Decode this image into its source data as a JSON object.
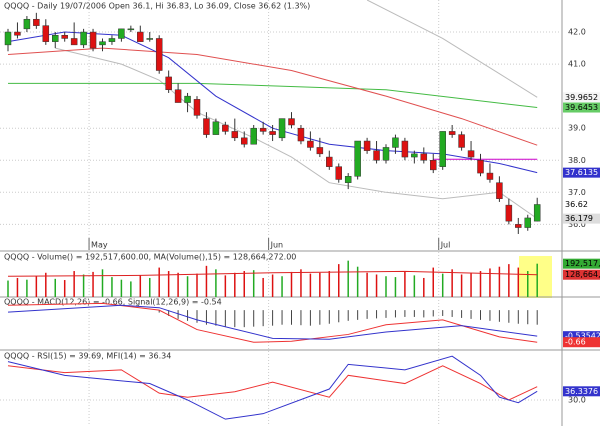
{
  "chart_data": {
    "type": "candlestick",
    "title": "QQQQ - Daily 19/07/2006 Open 36.1, Hi 36.83, Lo 36.09, Close 36.62 (1.3%)",
    "xticks": [
      {
        "value": 9,
        "label": "May"
      },
      {
        "value": 28,
        "label": "Jun"
      },
      {
        "value": 46,
        "label": "Jul"
      }
    ],
    "ylim": [
      35.2,
      43.0
    ],
    "yticks": [
      {
        "value": 42,
        "label": "42.0"
      },
      {
        "value": 41,
        "label": "41.0"
      },
      {
        "value": 39,
        "label": "39.0"
      },
      {
        "value": 38,
        "label": "38.0"
      },
      {
        "value": 37,
        "label": "37.0"
      },
      {
        "value": 36,
        "label": "36.0"
      }
    ],
    "up_color": "#22aa22",
    "down_color": "#dd1111",
    "open": [
      41.6,
      42.0,
      42.1,
      42.4,
      42.2,
      41.7,
      41.9,
      41.8,
      41.6,
      42.0,
      41.6,
      41.7,
      41.8,
      42.1,
      42.0,
      41.8,
      41.8,
      40.6,
      40.2,
      39.8,
      39.9,
      39.3,
      38.8,
      39.1,
      38.9,
      38.7,
      38.5,
      39.0,
      38.9,
      38.7,
      39.3,
      39.0,
      38.6,
      38.4,
      38.1,
      37.8,
      37.3,
      37.5,
      38.6,
      38.3,
      38.0,
      38.4,
      38.6,
      38.1,
      38.2,
      38.0,
      37.8,
      38.9,
      38.8,
      38.3,
      38.0,
      37.6,
      37.3,
      36.6,
      36.0,
      35.9,
      36.1
    ],
    "high": [
      42.1,
      42.3,
      42.5,
      42.6,
      42.4,
      42.0,
      42.0,
      42.3,
      42.1,
      42.1,
      41.8,
      41.9,
      42.1,
      42.2,
      42.2,
      42.0,
      41.9,
      40.8,
      40.4,
      40.1,
      40.0,
      39.5,
      39.3,
      39.2,
      39.3,
      38.9,
      39.1,
      39.2,
      39.1,
      39.3,
      39.5,
      39.1,
      38.9,
      38.7,
      38.3,
      37.9,
      37.6,
      38.6,
      38.7,
      38.6,
      38.5,
      38.8,
      38.7,
      38.3,
      38.4,
      38.2,
      38.9,
      39.1,
      38.9,
      38.6,
      38.2,
      37.9,
      37.5,
      36.8,
      36.2,
      36.3,
      36.83
    ],
    "low": [
      41.4,
      41.8,
      42.0,
      42.1,
      41.6,
      41.5,
      41.7,
      41.6,
      41.5,
      41.4,
      41.4,
      41.6,
      41.7,
      42.0,
      41.7,
      41.7,
      40.7,
      40.1,
      39.8,
      39.5,
      39.3,
      38.7,
      38.8,
      38.8,
      38.6,
      38.4,
      38.5,
      38.8,
      38.6,
      38.6,
      39.0,
      38.5,
      38.3,
      38.1,
      37.7,
      37.3,
      37.1,
      37.4,
      38.2,
      37.9,
      37.9,
      38.2,
      38.0,
      37.9,
      37.9,
      37.6,
      37.7,
      38.7,
      38.3,
      38.0,
      37.5,
      37.3,
      36.7,
      36.0,
      35.7,
      35.8,
      36.09
    ],
    "close": [
      42.0,
      41.9,
      42.4,
      42.2,
      41.7,
      41.9,
      41.8,
      41.6,
      42.0,
      41.5,
      41.7,
      41.8,
      42.1,
      42.1,
      41.7,
      41.8,
      40.8,
      40.2,
      39.8,
      40.0,
      39.4,
      38.8,
      39.2,
      38.9,
      38.7,
      38.5,
      39.0,
      38.9,
      38.8,
      39.3,
      39.1,
      38.6,
      38.4,
      38.2,
      37.8,
      37.4,
      37.5,
      38.6,
      38.3,
      38.0,
      38.4,
      38.7,
      38.1,
      38.2,
      38.0,
      37.7,
      38.9,
      38.8,
      38.4,
      38.1,
      37.6,
      37.4,
      36.8,
      36.1,
      35.9,
      36.2,
      36.62
    ],
    "overlays": [
      {
        "color": "#bbbbbb",
        "x": [
          38,
          46,
          52,
          56
        ],
        "values": [
          43.0,
          41.8,
          40.7,
          39.9652
        ]
      },
      {
        "color": "#bbbbbb",
        "x": [
          5,
          12,
          16,
          20,
          26,
          30,
          34,
          40,
          46,
          52,
          56
        ],
        "values": [
          41.5,
          41.0,
          40.5,
          39.5,
          38.7,
          38.1,
          37.3,
          37.0,
          36.8,
          37.0,
          36.179
        ]
      },
      {
        "color": "#44bb44",
        "x": [
          0,
          20,
          40,
          56
        ],
        "values": [
          40.4,
          40.4,
          40.2,
          39.6453
        ]
      },
      {
        "color": "#e05050",
        "x": [
          0,
          10,
          20,
          30,
          40,
          48,
          56
        ],
        "values": [
          41.3,
          41.5,
          41.3,
          40.8,
          40.0,
          39.3,
          38.47
        ]
      },
      {
        "color": "#3333cc",
        "x": [
          0,
          6,
          12,
          17,
          22,
          28,
          34,
          40,
          46,
          52,
          56
        ],
        "values": [
          41.7,
          42.0,
          41.9,
          41.2,
          40.0,
          39.0,
          38.5,
          38.3,
          38.2,
          37.9,
          37.6135
        ]
      },
      {
        "color": "#cc00cc",
        "x": [
          45,
          56
        ],
        "values": [
          38.03,
          38.03
        ]
      }
    ],
    "price_labels": [
      {
        "value": 39.9652,
        "color": "#f4f4f4",
        "text_color": "#000000"
      },
      {
        "value": 39.6453,
        "color": "#66cc66",
        "text_color": "#000000"
      },
      {
        "value": 37.6135,
        "color": "#3333cc",
        "text_color": "#ffffff"
      },
      {
        "value": 36.62,
        "color": "#ffffff",
        "text_color": "#000000"
      },
      {
        "value": 36.179,
        "color": "#dddddd",
        "text_color": "#000000"
      }
    ],
    "volume": {
      "title": "QQQQ - Volume() = 192,517,600.00, MA(Volume(),15) = 128,664,272.00",
      "ylim": [
        0,
        260000000
      ],
      "values": [
        95000000,
        110000000,
        100000000,
        120000000,
        140000000,
        105000000,
        98000000,
        150000000,
        130000000,
        145000000,
        160000000,
        115000000,
        100000000,
        90000000,
        125000000,
        110000000,
        170000000,
        150000000,
        140000000,
        120000000,
        135000000,
        180000000,
        160000000,
        125000000,
        140000000,
        150000000,
        155000000,
        110000000,
        130000000,
        120000000,
        145000000,
        160000000,
        135000000,
        140000000,
        150000000,
        190000000,
        210000000,
        175000000,
        140000000,
        130000000,
        120000000,
        115000000,
        150000000,
        125000000,
        110000000,
        170000000,
        135000000,
        160000000,
        130000000,
        140000000,
        150000000,
        165000000,
        175000000,
        190000000,
        170000000,
        150000000,
        192517600
      ],
      "ma": {
        "color": "#dd2222",
        "x": [
          0,
          14,
          28,
          42,
          56
        ],
        "values": [
          120000000,
          125000000,
          140000000,
          148000000,
          128664272
        ]
      },
      "labels": [
        {
          "value": 192517600,
          "label": "192,517,600",
          "color": "#33aa33"
        },
        {
          "value": 128664272,
          "label": "128,664,272",
          "color": "#dd3333"
        }
      ]
    },
    "macd": {
      "title": "QQQQ - MACD(12,26) = -0.66, Signal(12,26,9) = -0.54",
      "ylim": [
        -0.82,
        0.27
      ],
      "histogram": [
        null,
        null,
        null,
        null,
        null,
        null,
        null,
        null,
        null,
        null,
        null,
        null,
        null,
        null,
        null,
        null,
        -0.05,
        -0.12,
        -0.18,
        -0.22,
        -0.26,
        -0.3,
        -0.32,
        -0.34,
        -0.35,
        -0.35,
        -0.34,
        -0.33,
        -0.32,
        -0.3,
        -0.3,
        -0.31,
        -0.32,
        -0.3,
        -0.28,
        -0.25,
        -0.22,
        -0.2,
        -0.18,
        -0.17,
        -0.16,
        -0.15,
        -0.14,
        -0.14,
        -0.15,
        -0.13,
        -0.12,
        -0.14,
        -0.16,
        -0.18,
        -0.2,
        -0.22,
        -0.24,
        -0.26,
        -0.28,
        -0.29,
        -0.3
      ],
      "lines": [
        {
          "color": "#ee3333",
          "x": [
            0,
            10,
            16,
            20,
            26,
            30,
            36,
            40,
            46,
            52,
            56
          ],
          "values": [
            0.1,
            0.14,
            0.0,
            -0.4,
            -0.66,
            -0.64,
            -0.5,
            -0.3,
            -0.2,
            -0.55,
            -0.66
          ]
        },
        {
          "color": "#3333cc",
          "x": [
            0,
            12,
            16,
            20,
            28,
            34,
            40,
            48,
            56
          ],
          "values": [
            -0.04,
            0.1,
            0.05,
            -0.2,
            -0.58,
            -0.6,
            -0.45,
            -0.32,
            -0.53542
          ]
        }
      ],
      "labels": [
        {
          "value": -0.53542,
          "color": "#3333cc",
          "text_color": "#ffffff"
        },
        {
          "value": -0.66,
          "color": "#ee3333",
          "text_color": "#ffffff"
        }
      ]
    },
    "rsi": {
      "title": "QQQQ - RSI(15) = 39.69, MFI(14) = 36.34",
      "ylim": [
        11,
        66.5
      ],
      "yticks": [
        {
          "value": 30,
          "label": "30.0"
        }
      ],
      "lines": [
        {
          "color": "#ee3333",
          "x": [
            0,
            6,
            12,
            16,
            19,
            24,
            28,
            34,
            36,
            42,
            46,
            50,
            53,
            56
          ],
          "values": [
            55,
            50,
            52,
            35,
            32,
            36,
            43,
            32,
            48,
            42,
            55,
            42,
            30,
            39.69
          ]
        },
        {
          "color": "#3333cc",
          "x": [
            0,
            6,
            15,
            19,
            23,
            27,
            34,
            36,
            42,
            47,
            50,
            52,
            54,
            56
          ],
          "values": [
            58,
            48,
            42,
            30,
            16,
            20,
            38,
            56,
            52,
            62,
            48,
            32,
            28,
            36.3376
          ]
        }
      ],
      "labels": [
        {
          "value": 36.3376,
          "color": "#3333cc",
          "text_color": "#ffffff"
        }
      ]
    }
  }
}
